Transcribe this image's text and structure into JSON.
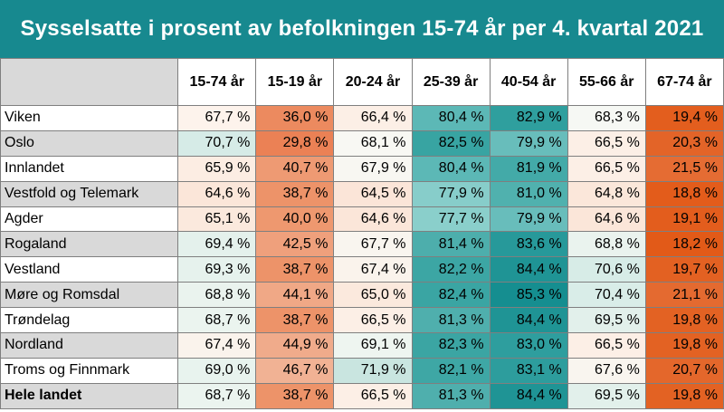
{
  "title": "Sysselsatte i prosent av befolkningen 15-74 år per 4. kvartal 2021",
  "columns": [
    "15-74 år",
    "15-19 år",
    "20-24 år",
    "25-39 år",
    "40-54 år",
    "55-66 år",
    "67-74 år"
  ],
  "rows": [
    {
      "name": "Viken",
      "values": [
        "67,7 %",
        "36,0 %",
        "66,4 %",
        "80,4 %",
        "82,9 %",
        "68,3 %",
        "19,4 %"
      ],
      "colors": [
        "#fdf3ec",
        "#ec8a5f",
        "#fcefe6",
        "#5cb8b6",
        "#2f9f9e",
        "#f6f8f4",
        "#e35e1e"
      ]
    },
    {
      "name": "Oslo",
      "values": [
        "70,7 %",
        "29,8 %",
        "68,1 %",
        "82,5 %",
        "79,9 %",
        "66,5 %",
        "20,3 %"
      ],
      "colors": [
        "#d6ebe7",
        "#eb8155",
        "#f8f8f3",
        "#38a4a2",
        "#68bdbb",
        "#fcefe6",
        "#e36428"
      ]
    },
    {
      "name": "Innlandet",
      "values": [
        "65,9 %",
        "40,7 %",
        "67,9 %",
        "80,4 %",
        "81,9 %",
        "66,5 %",
        "21,5 %"
      ],
      "colors": [
        "#fcede3",
        "#ee9a73",
        "#f8f7f2",
        "#5cb8b6",
        "#43aaa8",
        "#fcefe6",
        "#e56c33"
      ]
    },
    {
      "name": "Vestfold og Telemark",
      "values": [
        "64,6 %",
        "38,7 %",
        "64,5 %",
        "77,9 %",
        "81,0 %",
        "64,8 %",
        "18,8 %"
      ],
      "colors": [
        "#fbe6d9",
        "#ed9369",
        "#fbe5d8",
        "#87cdca",
        "#50b1ae",
        "#fbe7da",
        "#e35c1b"
      ]
    },
    {
      "name": "Agder",
      "values": [
        "65,1 %",
        "40,0 %",
        "64,6 %",
        "77,7 %",
        "79,9 %",
        "64,6 %",
        "19,1 %"
      ],
      "colors": [
        "#fbe9dd",
        "#ee986f",
        "#fbe6d9",
        "#8acfcb",
        "#68bdbb",
        "#fbe6d9",
        "#e35d1d"
      ]
    },
    {
      "name": "Rogaland",
      "values": [
        "69,4 %",
        "42,5 %",
        "67,7 %",
        "81,4 %",
        "83,6 %",
        "68,8 %",
        "18,2 %"
      ],
      "colors": [
        "#e4f1ec",
        "#efa07c",
        "#f9f5ef",
        "#4daeac",
        "#27999a",
        "#eaf3ee",
        "#e25a18"
      ]
    },
    {
      "name": "Vestland",
      "values": [
        "69,3 %",
        "38,7 %",
        "67,4 %",
        "82,2 %",
        "84,4 %",
        "70,6 %",
        "19,7 %"
      ],
      "colors": [
        "#e6f2ed",
        "#ed9369",
        "#faf3ec",
        "#3ca6a4",
        "#1f9495",
        "#d7ece7",
        "#e36122"
      ]
    },
    {
      "name": "Møre og Romsdal",
      "values": [
        "68,8 %",
        "44,1 %",
        "65,0 %",
        "82,4 %",
        "85,3 %",
        "70,4 %",
        "21,1 %"
      ],
      "colors": [
        "#eaf3ee",
        "#f0a886",
        "#fbe9dd",
        "#3aa5a3",
        "#158e90",
        "#d9ede8",
        "#e46a30"
      ]
    },
    {
      "name": "Trøndelag",
      "values": [
        "68,7 %",
        "38,7 %",
        "66,5 %",
        "81,3 %",
        "84,4 %",
        "69,5 %",
        "19,8 %"
      ],
      "colors": [
        "#ebf4ef",
        "#ed9369",
        "#fcefe6",
        "#4fafad",
        "#1f9495",
        "#e2f0eb",
        "#e36223"
      ]
    },
    {
      "name": "Nordland",
      "values": [
        "67,4 %",
        "44,9 %",
        "69,1 %",
        "82,3 %",
        "83,0 %",
        "66,5 %",
        "19,8 %"
      ],
      "colors": [
        "#faf3ec",
        "#f0ab8b",
        "#eef5f0",
        "#3ba5a3",
        "#2e9e9e",
        "#fcefe6",
        "#e36223"
      ]
    },
    {
      "name": "Troms og Finnmark",
      "values": [
        "69,0 %",
        "46,7 %",
        "71,9 %",
        "82,1 %",
        "83,1 %",
        "67,6 %",
        "20,7 %"
      ],
      "colors": [
        "#e8f3ee",
        "#f1b294",
        "#c9e5e0",
        "#3ea7a5",
        "#2d9d9d",
        "#f9f5ef",
        "#e4672b"
      ]
    },
    {
      "name": "Hele landet",
      "values": [
        "68,7 %",
        "38,7 %",
        "66,5 %",
        "81,3 %",
        "84,4 %",
        "69,5 %",
        "19,8 %"
      ],
      "colors": [
        "#ebf4ef",
        "#ed9369",
        "#fcefe6",
        "#4fafad",
        "#1f9495",
        "#e2f0eb",
        "#e36223"
      ]
    }
  ]
}
